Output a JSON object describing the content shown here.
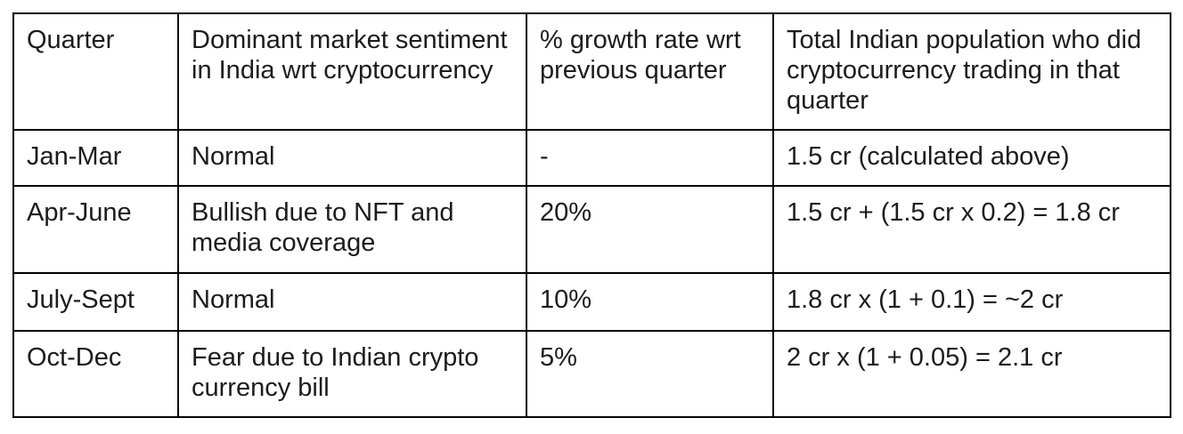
{
  "table": {
    "columns": [
      "Quarter",
      "Dominant market sentiment in India wrt cryptocurrency",
      "% growth rate wrt previous quarter",
      "Total Indian population who did cryptocurrency trading in that quarter"
    ],
    "rows": [
      [
        "Jan-Mar",
        "Normal",
        "-",
        "1.5 cr (calculated above)"
      ],
      [
        "Apr-June",
        "Bullish due to NFT and media coverage",
        "20%",
        "1.5 cr + (1.5 cr x 0.2) = 1.8 cr"
      ],
      [
        "July-Sept",
        "Normal",
        "10%",
        "1.8 cr x (1 + 0.1) = ~2 cr"
      ],
      [
        "Oct-Dec",
        "Fear due to Indian crypto currency bill",
        "5%",
        "2 cr x (1 + 0.05) = 2.1 cr"
      ]
    ]
  },
  "colors": {
    "border": "#000000",
    "text": "#1c1c1c",
    "background": "#ffffff"
  }
}
